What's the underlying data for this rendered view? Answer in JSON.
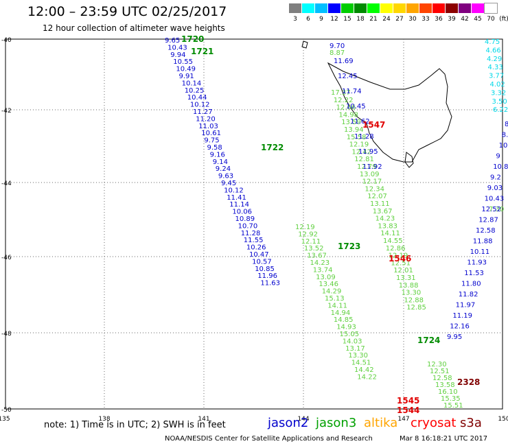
{
  "title": "12:00 – 23:59 UTC 02/25/2017",
  "subtitle": "12 hour collection of altimeter wave heights",
  "color_scale": {
    "labels": [
      "3",
      "6",
      "9",
      "12",
      "15",
      "18",
      "21",
      "24",
      "27",
      "30",
      "33",
      "36",
      "39",
      "42",
      "45",
      "70",
      "(ft)"
    ],
    "colors": [
      "#7f7f7f",
      "#00ffff",
      "#00bfff",
      "#0000ff",
      "#00cd00",
      "#008b00",
      "#00ff00",
      "#ffff00",
      "#ffd700",
      "#ffa500",
      "#ff4500",
      "#ff0000",
      "#8b0000",
      "#800080",
      "#ff00ff",
      "#ffffff"
    ]
  },
  "map": {
    "lon_labels": [
      "135",
      "138",
      "141",
      "144",
      "147",
      "150"
    ],
    "lat_labels": [
      "-40",
      "-42",
      "-44",
      "-46",
      "-48",
      "-50"
    ]
  },
  "footer": {
    "note": "note:  1) Time is in UTC; 2) SWH is in feet",
    "credit": "NOAA/NESDIS Center for Satellite Applications and Research",
    "timestamp": "Mar  8 16:18:21 UTC 2017"
  },
  "legend": [
    {
      "name": "jason2",
      "color": "#0000cd"
    },
    {
      "name": "jason3",
      "color": "#00a000"
    },
    {
      "name": "altika",
      "color": "#ffa500"
    },
    {
      "name": "cryosat",
      "color": "#ff0000"
    },
    {
      "name": "s3a",
      "color": "#800000"
    }
  ],
  "time_labels": [
    {
      "text": "1720",
      "color": "#008b00"
    },
    {
      "text": "1721",
      "color": "#008b00"
    },
    {
      "text": "1722",
      "color": "#008b00"
    },
    {
      "text": "1723",
      "color": "#008b00"
    },
    {
      "text": "1724",
      "color": "#008b00"
    },
    {
      "text": "1547",
      "color": "#e00000"
    },
    {
      "text": "1546",
      "color": "#e00000"
    },
    {
      "text": "1545",
      "color": "#e00000"
    },
    {
      "text": "1544",
      "color": "#e00000"
    },
    {
      "text": "2328",
      "color": "#800000"
    }
  ],
  "tracks": [
    {
      "name": "jason2-track-1",
      "color": "#0000cd",
      "values": [
        "9.65",
        "10.43",
        "9.94",
        "10.55",
        "10.49",
        "9.91",
        "10.14",
        "10.25",
        "10.44",
        "10.12",
        "11.27",
        "11.20",
        "11.03",
        "10.61",
        "9.75",
        "9.58",
        "9.16",
        "9.14",
        "9.24",
        "9.63",
        "9.45",
        "10.12",
        "11.41",
        "11.14",
        "10.06",
        "10.89",
        "10.70",
        "11.28",
        "11.55",
        "10.26",
        "10.47",
        "10.57",
        "10.85",
        "11.96",
        "11.63"
      ]
    },
    {
      "name": "jason3-track-1",
      "color": "#60d040",
      "values": [
        "12.19",
        "12.92",
        "12.11",
        "13.52",
        "13.67",
        "14.23",
        "13.74",
        "13.09",
        "13.46",
        "14.29",
        "15.13",
        "14.11",
        "14.94",
        "14.85",
        "14.93",
        "15.05",
        "14.03",
        "13.17",
        "13.30",
        "14.51",
        "14.42",
        "14.22"
      ]
    },
    {
      "name": "jason3-track-2",
      "color": "#60d040",
      "values": [
        "17.37",
        "12.22",
        "12.66",
        "14.98",
        "13.59",
        "13.94",
        "15.58",
        "12.19",
        "12.42",
        "12.81",
        "12.79",
        "13.09",
        "12.17",
        "12.34",
        "12.07",
        "13.11",
        "13.67",
        "14.23",
        "13.83",
        "14.11",
        "14.55",
        "12.86",
        "12.19",
        "12.51",
        "12.01",
        "13.31",
        "13.88",
        "13.30",
        "12.88",
        "12.85"
      ]
    },
    {
      "name": "jason2-track-2",
      "color": "#0000cd",
      "values": [
        "9.70",
        "11.69",
        "12.45",
        "11.74",
        "10.45",
        "11.62",
        "11.28",
        "11.95",
        "11.92"
      ]
    },
    {
      "name": "jason3-track-3",
      "color": "#60d040",
      "values": [
        "8.87",
        "7.30"
      ]
    },
    {
      "name": "jason2-track-3",
      "color": "#0000cd",
      "values": [
        "8.21",
        "8.36",
        "10.3",
        "9",
        "10.8",
        "9.2",
        "9.03",
        "10.43",
        "12.52",
        "12.87",
        "12.58",
        "11.88",
        "10.11",
        "11.93",
        "11.53",
        "11.80",
        "11.82",
        "11.97",
        "11.19",
        "12.16",
        "9.95"
      ]
    },
    {
      "name": "jason3-track-4",
      "color": "#60d040",
      "values": [
        "12.30",
        "12.51",
        "12.58",
        "13.58",
        "16.10",
        "15.35",
        "15.51"
      ]
    },
    {
      "name": "altika-track-1",
      "color": "#00d8e8",
      "values": [
        "4.75",
        "4.66",
        "4.29",
        "4.33",
        "3.77",
        "4.02",
        "3.32",
        "3.50",
        "6.22"
      ]
    }
  ]
}
